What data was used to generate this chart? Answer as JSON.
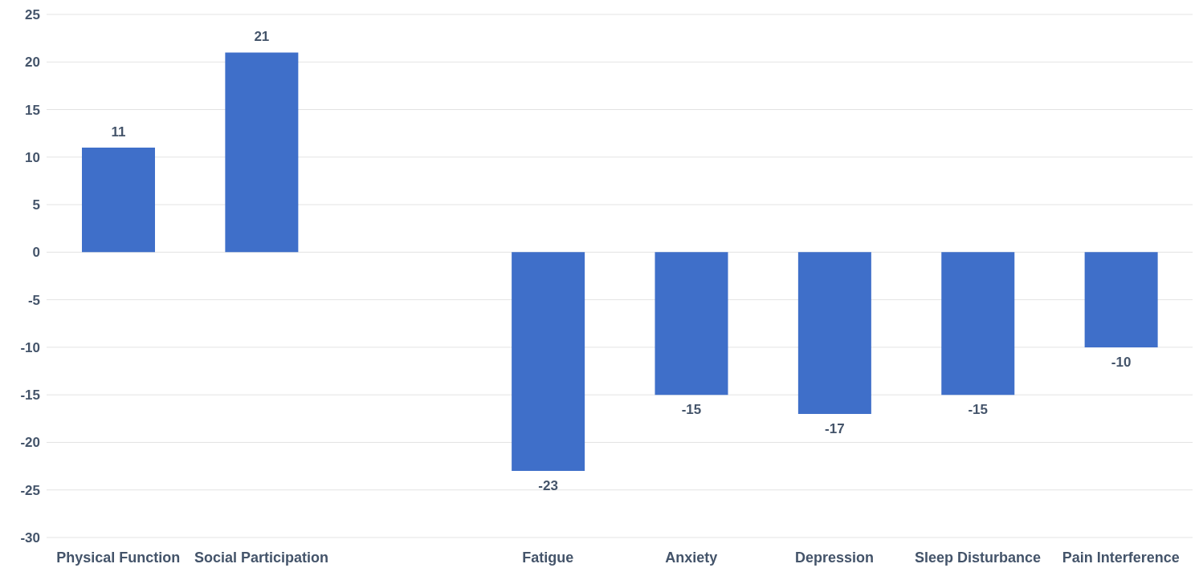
{
  "chart_data": {
    "type": "bar",
    "categories": [
      "Physical Function",
      "Social Participation",
      null,
      "Fatigue",
      "Anxiety",
      "Depression",
      "Sleep Disturbance",
      "Pain Interference"
    ],
    "values": [
      11,
      21,
      null,
      -23,
      -15,
      -17,
      -15,
      -10
    ],
    "color": "#3f6fc9",
    "ylim": [
      -30,
      25
    ],
    "yticks": [
      -30,
      -25,
      -20,
      -15,
      -10,
      -5,
      0,
      5,
      10,
      15,
      20,
      25
    ],
    "grid": "y",
    "data_labels": true
  }
}
